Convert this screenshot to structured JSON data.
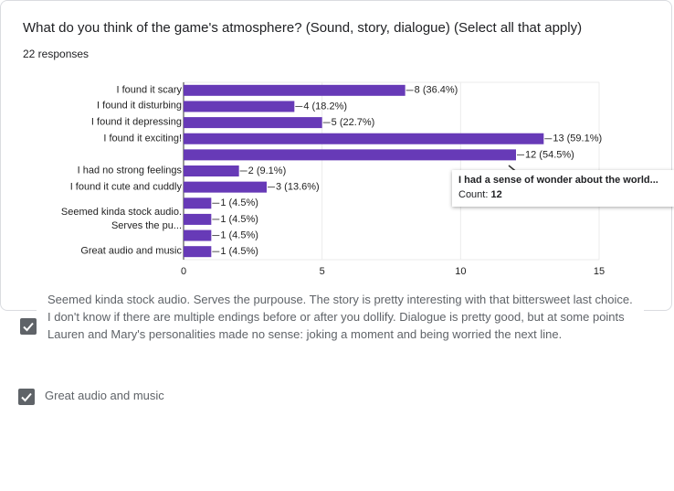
{
  "header": {
    "title": "What do you think of the game's atmosphere? (Sound, story, dialogue) (Select all that apply)",
    "responses": "22 responses"
  },
  "chart_data": {
    "type": "bar",
    "orientation": "horizontal",
    "categories": [
      "I found it scary",
      "I found it disturbing",
      "I found it depressing",
      "I found it exciting!",
      null,
      "I had no strong feelings",
      "I found it cute and cuddly",
      null,
      "Seemed kinda stock audio. Serves the pu...",
      null,
      "Great audio and music"
    ],
    "values": [
      8,
      4,
      5,
      13,
      12,
      2,
      3,
      1,
      1,
      1,
      1
    ],
    "value_labels": [
      "8 (36.4%)",
      "4 (18.2%)",
      "5 (22.7%)",
      "13 (59.1%)",
      "12 (54.5%)",
      "2 (9.1%)",
      "3 (13.6%)",
      "1 (4.5%)",
      "1 (4.5%)",
      "1 (4.5%)",
      "1 (4.5%)"
    ],
    "color": "#673ab7",
    "xlim": [
      0,
      15
    ],
    "xticks": [
      0,
      5,
      10,
      15
    ],
    "grid": true
  },
  "tooltip": {
    "title": "I had a sense of wonder about the world...",
    "count_label": "Count:",
    "count": 12
  },
  "other_responses": [
    {
      "text": "Seemed kinda stock audio. Serves the purpouse. The story is pretty interesting with that bittersweet last choice. I don't know if there are multiple endings before or after you dollify. Dialogue is pretty good, but at some points Lauren and Mary's personalities made no sense: joking a moment and being worried the next line."
    },
    {
      "text": "Great audio and music"
    }
  ]
}
